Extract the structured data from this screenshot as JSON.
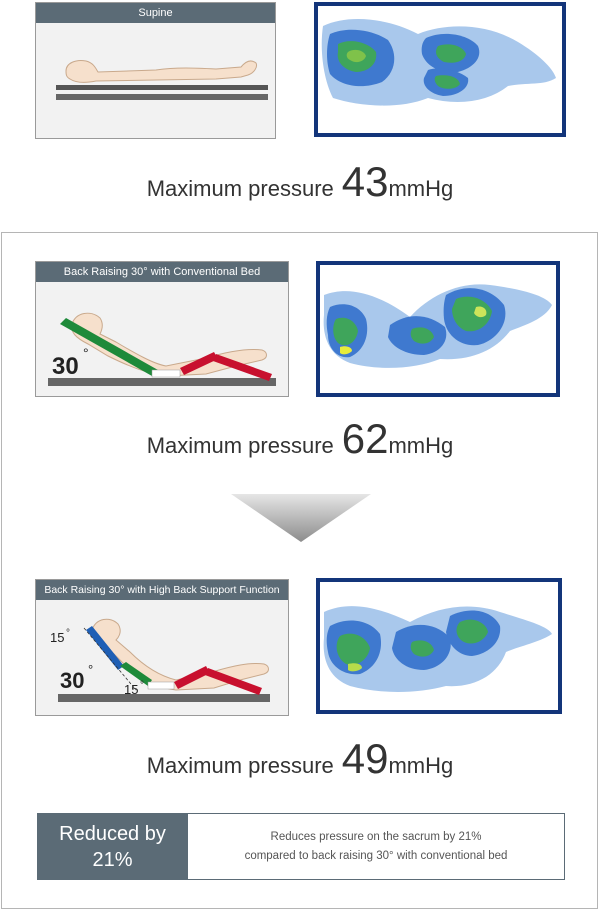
{
  "supine": {
    "header": "Supine",
    "pressure_label": "Maximum pressure",
    "pressure_value": "43",
    "pressure_unit": "mmHg"
  },
  "conventional": {
    "header": "Back Raising 30° with Conventional Bed",
    "angle": "30",
    "pressure_label": "Maximum pressure",
    "pressure_value": "62",
    "pressure_unit": "mmHg"
  },
  "high_back": {
    "header": "Back Raising 30° with High Back Support Function",
    "angle": "30",
    "angle_upper": "15",
    "angle_lower": "15",
    "pressure_label": "Maximum pressure",
    "pressure_value": "49",
    "pressure_unit": "mmHg"
  },
  "reduction": {
    "label": "Reduced by",
    "value": "21%",
    "description_line1": "Reduces pressure on the sacrum by 21%",
    "description_line2": "compared to back raising 30° with conventional bed"
  },
  "colors": {
    "header_bg": "#5b6b76",
    "map_border": "#13357a",
    "segment_green": "#1e8a3a",
    "segment_red": "#c8102e",
    "segment_blue": "#1f5fb5"
  }
}
